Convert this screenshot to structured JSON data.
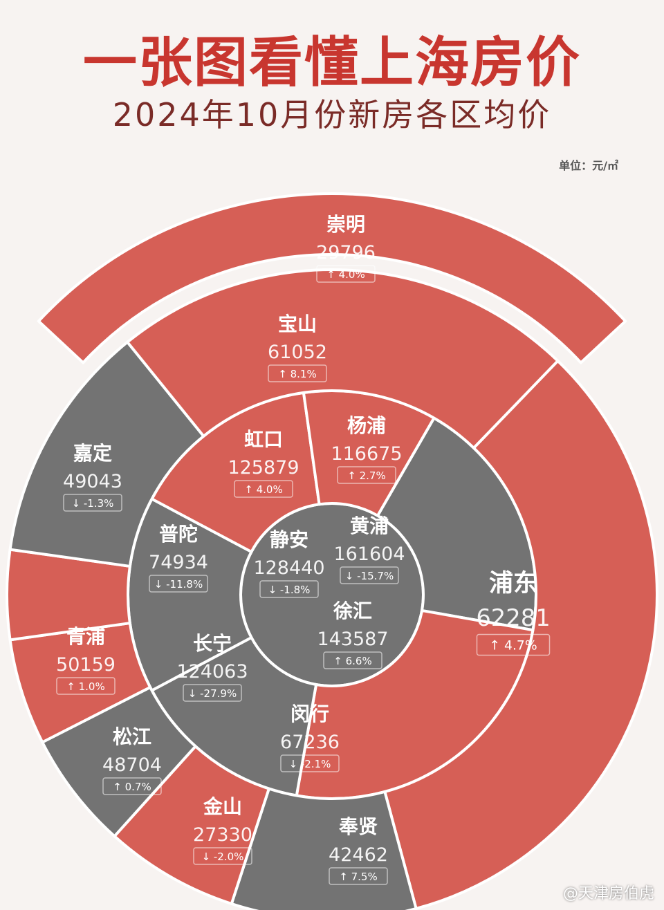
{
  "title": "一张图看懂上海房价",
  "subtitle": "2024年10月份新房各区均价",
  "unit": "单位：元/㎡",
  "watermark": "@天津房伯虎",
  "colors": {
    "up": "#d65f56",
    "down": "#737373",
    "title": "#c8362f",
    "divider": "#ffffff"
  },
  "chart_data": {
    "type": "sunburst",
    "title": "一张图看懂上海房价",
    "subtitle": "2024年10月份新房各区均价",
    "unit": "元/㎡",
    "rings": [
      {
        "ring": "center",
        "districts": [
          {
            "name": "静安",
            "price": "128440",
            "change": "-1.8%",
            "trend": "down"
          }
        ]
      },
      {
        "ring": "inner",
        "districts": [
          {
            "name": "黄浦",
            "price": "161604",
            "change": "-15.7%",
            "trend": "down"
          },
          {
            "name": "徐汇",
            "price": "143587",
            "change": "6.6%",
            "trend": "up"
          },
          {
            "name": "长宁",
            "price": "124063",
            "change": "-27.9%",
            "trend": "down"
          },
          {
            "name": "普陀",
            "price": "74934",
            "change": "-11.8%",
            "trend": "down"
          },
          {
            "name": "虹口",
            "price": "125879",
            "change": "4.0%",
            "trend": "up"
          },
          {
            "name": "杨浦",
            "price": "116675",
            "change": "2.7%",
            "trend": "up"
          }
        ]
      },
      {
        "ring": "middle",
        "districts": [
          {
            "name": "浦东",
            "price": "62281",
            "change": "4.7%",
            "trend": "up"
          },
          {
            "name": "闵行",
            "price": "67236",
            "change": "-2.1%",
            "trend": "down"
          },
          {
            "name": "奉贤",
            "price": "42462",
            "change": "7.5%",
            "trend": "up"
          },
          {
            "name": "金山",
            "price": "27330",
            "change": "-2.0%",
            "trend": "down"
          },
          {
            "name": "松江",
            "price": "48704",
            "change": "0.7%",
            "trend": "up"
          },
          {
            "name": "青浦",
            "price": "50159",
            "change": "1.0%",
            "trend": "up"
          },
          {
            "name": "嘉定",
            "price": "49043",
            "change": "-1.3%",
            "trend": "down"
          },
          {
            "name": "宝山",
            "price": "61052",
            "change": "8.1%",
            "trend": "up"
          }
        ]
      },
      {
        "ring": "outer",
        "districts": [
          {
            "name": "崇明",
            "price": "29796",
            "change": "4.0%",
            "trend": "up"
          }
        ]
      }
    ]
  }
}
